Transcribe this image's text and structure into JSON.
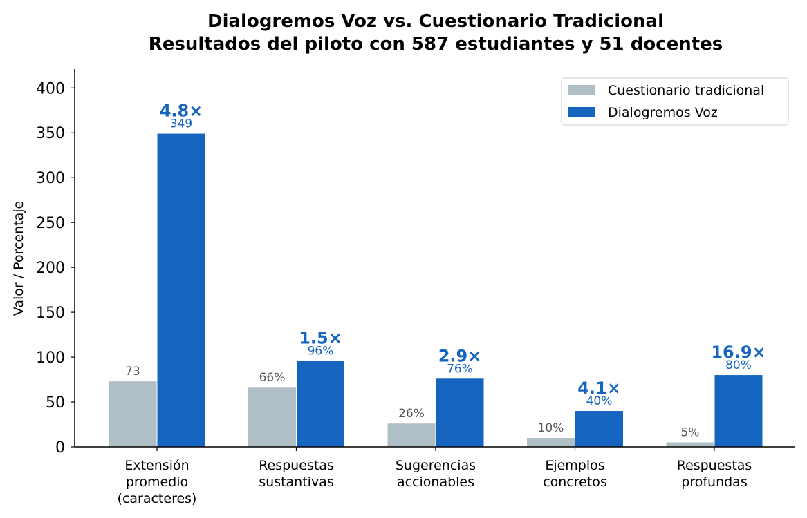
{
  "chart_data": {
    "type": "bar",
    "title": "Dialogremos Voz vs. Cuestionario Tradicional",
    "subtitle": "Resultados del piloto con 587 estudiantes y 51 docentes",
    "xlabel": "",
    "ylabel": "Valor / Porcentaje",
    "ylim": [
      0,
      421
    ],
    "yticks": [
      0,
      50,
      100,
      150,
      200,
      250,
      300,
      350,
      400
    ],
    "legend_placement": "top-right",
    "categories": [
      [
        "Extensión",
        "promedio",
        "(caracteres)"
      ],
      [
        "Respuestas",
        "sustantivas"
      ],
      [
        "Sugerencias",
        "accionables"
      ],
      [
        "Ejemplos",
        "concretos"
      ],
      [
        "Respuestas",
        "profundas"
      ]
    ],
    "series": [
      {
        "name": "Cuestionario tradicional",
        "color": "#b0bec5",
        "values": [
          73,
          66,
          26,
          10,
          5
        ],
        "labels": [
          "73",
          "66%",
          "26%",
          "10%",
          "5%"
        ]
      },
      {
        "name": "Dialogremos Voz",
        "color": "#1565c0",
        "values": [
          349,
          96,
          76,
          40,
          80
        ],
        "labels": [
          "349",
          "96%",
          "76%",
          "40%",
          "80%"
        ]
      }
    ],
    "multipliers": [
      "4.8×",
      "1.5×",
      "2.9×",
      "4.1×",
      "16.9×"
    ]
  }
}
